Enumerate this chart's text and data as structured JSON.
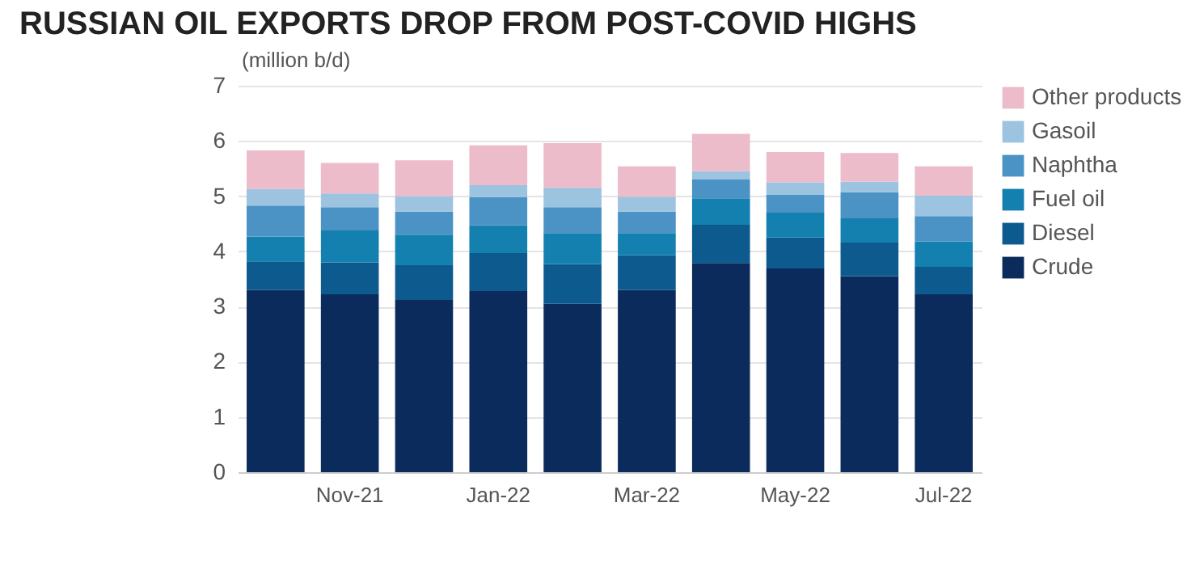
{
  "chart_data": {
    "type": "bar",
    "title": "RUSSIAN OIL EXPORTS DROP FROM POST-COVID HIGHS",
    "ylabel": "(million b/d)",
    "categories": [
      null,
      "Nov-21",
      null,
      "Jan-22",
      null,
      "Mar-22",
      null,
      "May-22",
      null,
      "Jul-22"
    ],
    "stacked": true,
    "legend": "right",
    "grid": "y",
    "ylim": [
      0,
      7
    ],
    "yticks": [
      0,
      1,
      2,
      3,
      4,
      5,
      6,
      7
    ],
    "series": [
      {
        "name": "Crude",
        "color": "#0b2b5c",
        "values": [
          3.3,
          3.22,
          3.12,
          3.28,
          3.05,
          3.3,
          3.79,
          3.69,
          3.55,
          3.22
        ]
      },
      {
        "name": "Diesel",
        "color": "#0d5a8f",
        "values": [
          0.52,
          0.58,
          0.63,
          0.69,
          0.72,
          0.63,
          0.69,
          0.56,
          0.61,
          0.5
        ]
      },
      {
        "name": "Fuel oil",
        "color": "#1380b0",
        "values": [
          0.45,
          0.58,
          0.55,
          0.5,
          0.56,
          0.4,
          0.48,
          0.45,
          0.44,
          0.46
        ]
      },
      {
        "name": "Naphtha",
        "color": "#4a93c4",
        "values": [
          0.56,
          0.42,
          0.42,
          0.51,
          0.47,
          0.39,
          0.34,
          0.33,
          0.47,
          0.46
        ]
      },
      {
        "name": "Gasoil",
        "color": "#9cc3df",
        "values": [
          0.3,
          0.25,
          0.28,
          0.22,
          0.35,
          0.27,
          0.15,
          0.22,
          0.19,
          0.37
        ]
      },
      {
        "name": "Other products",
        "color": "#ecbccb",
        "values": [
          0.7,
          0.55,
          0.65,
          0.72,
          0.81,
          0.55,
          0.68,
          0.55,
          0.52,
          0.53
        ]
      }
    ]
  }
}
